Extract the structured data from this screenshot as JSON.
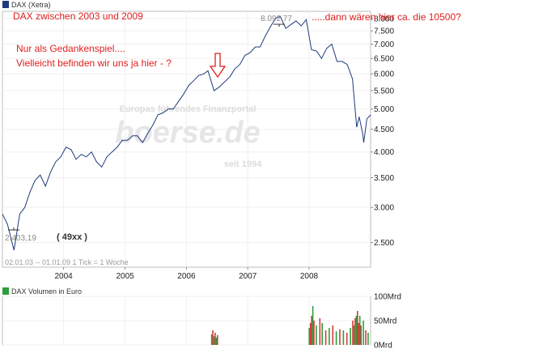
{
  "legend": {
    "main_series": "DAX (Xetra)",
    "volume_series": "DAX Volumen in Euro",
    "main_color": "#1f3a7a",
    "volume_color": "#2e9e3a"
  },
  "annotations": {
    "title_line": "DAX zwischen  2003 und 2009",
    "note_line1": "Nur als Gedankenspiel....",
    "note_line2": "Vielleicht befinden wir uns ja hier - ?",
    "top_note": ".....dann wären hier ca. die 10500?",
    "bottom_note": "( 49xx )",
    "max_label": "8.092,77",
    "min_label": "2.403,19",
    "range_info": "02.01.03 -- 01.01.09   1 Tick = 1 Woche",
    "text_color": "#e02020"
  },
  "watermark": {
    "line1": "Europas führendes Finanzportal",
    "brand": "boerse.de",
    "line2": "seit 1994"
  },
  "chart_data": [
    {
      "type": "line",
      "name": "DAX (Xetra)",
      "y_scale": "log",
      "ylim": [
        2200,
        8300
      ],
      "xlim": [
        "2003-01-02",
        "2009-01-01"
      ],
      "x_tick_labels": [
        "2004",
        "2005",
        "2006",
        "2007",
        "2008"
      ],
      "y_tick_labels": [
        "8.000",
        "7.500",
        "7.000",
        "6.500",
        "6.000",
        "5.500",
        "5.000",
        "4.500",
        "4.000",
        "3.500",
        "3.000",
        "2.500"
      ],
      "y_tick_values": [
        8000,
        7500,
        7000,
        6500,
        6000,
        5500,
        5000,
        4500,
        4000,
        3500,
        3000,
        2500
      ],
      "x": [
        "2003-01-02",
        "2003-02-01",
        "2003-03-12",
        "2003-04-15",
        "2003-05-15",
        "2003-06-15",
        "2003-07-15",
        "2003-08-15",
        "2003-09-15",
        "2003-10-15",
        "2003-11-15",
        "2003-12-15",
        "2004-01-15",
        "2004-02-15",
        "2004-03-15",
        "2004-04-15",
        "2004-05-15",
        "2004-06-15",
        "2004-07-15",
        "2004-08-15",
        "2004-09-15",
        "2004-10-15",
        "2004-11-15",
        "2004-12-15",
        "2005-01-15",
        "2005-02-15",
        "2005-03-15",
        "2005-04-15",
        "2005-05-15",
        "2005-06-15",
        "2005-07-15",
        "2005-08-15",
        "2005-09-15",
        "2005-10-15",
        "2005-11-15",
        "2005-12-15",
        "2006-01-15",
        "2006-02-15",
        "2006-03-15",
        "2006-04-15",
        "2006-05-09",
        "2006-06-14",
        "2006-07-15",
        "2006-08-15",
        "2006-09-15",
        "2006-10-15",
        "2006-11-15",
        "2006-12-15",
        "2007-01-15",
        "2007-02-15",
        "2007-03-15",
        "2007-04-15",
        "2007-05-15",
        "2007-06-15",
        "2007-07-13",
        "2007-08-15",
        "2007-09-15",
        "2007-10-15",
        "2007-11-15",
        "2007-12-15",
        "2008-01-15",
        "2008-02-15",
        "2008-03-15",
        "2008-04-15",
        "2008-05-15",
        "2008-06-15",
        "2008-07-15",
        "2008-08-15",
        "2008-09-15",
        "2008-10-10",
        "2008-10-25",
        "2008-11-15",
        "2008-11-21",
        "2008-12-10",
        "2009-01-01"
      ],
      "y": [
        2900,
        2750,
        2403,
        2900,
        3000,
        3250,
        3450,
        3550,
        3350,
        3600,
        3800,
        3900,
        4100,
        4050,
        3850,
        3950,
        3900,
        4000,
        3800,
        3700,
        3900,
        4000,
        4100,
        4250,
        4250,
        4350,
        4350,
        4200,
        4400,
        4600,
        4850,
        4900,
        5000,
        5000,
        5200,
        5400,
        5650,
        5800,
        5950,
        6000,
        6100,
        5500,
        5600,
        5750,
        5900,
        6150,
        6300,
        6600,
        6700,
        6900,
        6900,
        7300,
        7650,
        8000,
        8093,
        7600,
        7750,
        7900,
        7700,
        7950,
        6800,
        6750,
        6500,
        6850,
        7000,
        6400,
        6400,
        6300,
        5850,
        4550,
        4800,
        4400,
        4200,
        4750,
        4850
      ]
    },
    {
      "type": "bar",
      "name": "DAX Volumen in Euro",
      "ylim": [
        0,
        100
      ],
      "y_tick_labels": [
        "100Mrd",
        "50Mrd",
        "0Mrd"
      ],
      "x": [
        "2006-06-01",
        "2006-06-08",
        "2006-06-15",
        "2006-06-22",
        "2006-06-29",
        "2006-07-06",
        "2008-01-03",
        "2008-01-10",
        "2008-01-17",
        "2008-01-24",
        "2008-01-31",
        "2008-02-14",
        "2008-03-06",
        "2008-03-20",
        "2008-04-10",
        "2008-05-01",
        "2008-05-22",
        "2008-06-12",
        "2008-07-03",
        "2008-07-24",
        "2008-08-14",
        "2008-09-04",
        "2008-09-18",
        "2008-09-25",
        "2008-10-02",
        "2008-10-09",
        "2008-10-16",
        "2008-10-23",
        "2008-10-30",
        "2008-11-06",
        "2008-11-20",
        "2008-12-04",
        "2008-12-18"
      ],
      "values": [
        22,
        30,
        18,
        25,
        15,
        20,
        35,
        45,
        60,
        80,
        50,
        40,
        55,
        45,
        30,
        35,
        40,
        28,
        32,
        30,
        25,
        35,
        50,
        40,
        55,
        60,
        70,
        45,
        60,
        40,
        50,
        30,
        25
      ],
      "colors": [
        "green",
        "red",
        "green",
        "red",
        "green",
        "red",
        "green",
        "red",
        "red",
        "green",
        "red",
        "green",
        "red",
        "green",
        "red",
        "green",
        "red",
        "green",
        "red",
        "green",
        "red",
        "green",
        "red",
        "green",
        "red",
        "green",
        "red",
        "red",
        "green",
        "red",
        "green",
        "red",
        "green"
      ]
    }
  ]
}
